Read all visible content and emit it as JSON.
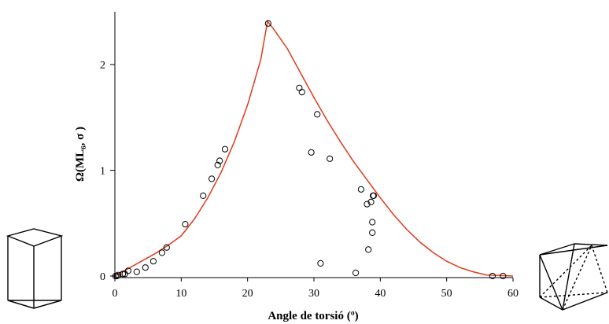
{
  "chart_data": {
    "type": "scatter",
    "title": "",
    "xlabel": "Angle de torsió (º)",
    "ylabel": "Ω(ML₆, σ )",
    "xlim": [
      0,
      60
    ],
    "ylim": [
      0,
      2.5
    ],
    "x_ticks": [
      "0",
      "10",
      "20",
      "30",
      "40",
      "50",
      "60"
    ],
    "y_ticks": [
      "0",
      "1",
      "2"
    ],
    "grid": false,
    "legend": "none",
    "colors": {
      "curve": "#e03a1e",
      "points": "#000000",
      "axes": "#000000"
    },
    "series": [
      {
        "type": "line",
        "x": [
          0,
          2,
          4,
          6,
          8,
          10,
          12,
          14,
          16,
          18,
          20,
          22,
          23,
          24,
          26,
          28,
          30,
          32,
          34,
          36,
          38,
          40,
          42,
          44,
          46,
          48,
          50,
          52,
          54,
          56,
          58,
          60
        ],
        "y": [
          0,
          0.07,
          0.14,
          0.21,
          0.29,
          0.38,
          0.54,
          0.74,
          0.98,
          1.27,
          1.62,
          2.05,
          2.41,
          2.33,
          2.15,
          1.92,
          1.69,
          1.47,
          1.27,
          1.08,
          0.91,
          0.74,
          0.58,
          0.44,
          0.32,
          0.22,
          0.14,
          0.08,
          0.04,
          0.01,
          0.005,
          0
        ]
      },
      {
        "type": "scatter",
        "x": [
          0.1,
          0.3,
          0.5,
          1.2,
          1.5,
          2,
          3.3,
          4.6,
          5.8,
          7.1,
          7.8,
          10.6,
          13.3,
          14.6,
          15.5,
          15.8,
          16.6,
          23.1,
          27.8,
          28.2,
          29.6,
          30.5,
          31,
          32.4,
          36.3,
          37.1,
          38,
          38.2,
          38.6,
          38.8,
          38.8,
          38.9,
          39,
          56.9,
          58.5
        ],
        "y": [
          0,
          0,
          0.01,
          0.02,
          0.02,
          0.05,
          0.04,
          0.08,
          0.14,
          0.22,
          0.27,
          0.49,
          0.76,
          0.92,
          1.05,
          1.09,
          1.2,
          2.39,
          1.78,
          1.74,
          1.17,
          1.53,
          0.12,
          1.11,
          0.03,
          0.82,
          0.68,
          0.25,
          0.7,
          0.51,
          0.41,
          0.76,
          0.76,
          0,
          0
        ]
      }
    ]
  }
}
